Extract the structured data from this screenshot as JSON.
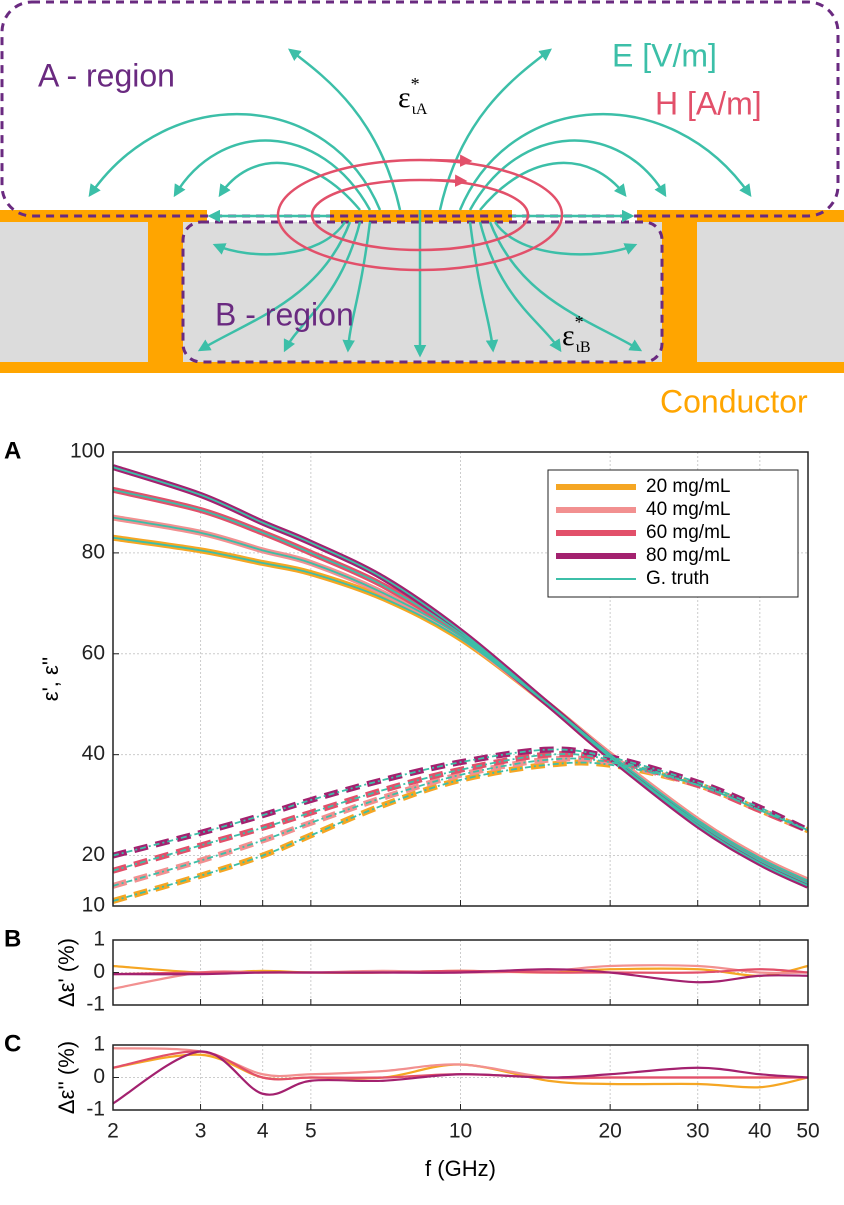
{
  "diagram": {
    "a_region": "A - region",
    "b_region": "B - region",
    "e_field": "E [V/m]",
    "h_field": "H [A/m]",
    "conductor": "Conductor",
    "eps_a": {
      "symbol": "ε",
      "sup": "*",
      "sub": "ιA"
    },
    "eps_b": {
      "symbol": "ε",
      "sup": "*",
      "sub": "ιB"
    }
  },
  "chart_data": [
    {
      "type": "line",
      "panel": "A",
      "ylabel": "ε', ε''",
      "xscale": "log",
      "grid": true,
      "legend": "upper right",
      "x": [
        2,
        3,
        4,
        5,
        7,
        10,
        15,
        20,
        30,
        40,
        50
      ],
      "xlim": [
        2,
        50
      ],
      "xticks": [
        2,
        3,
        4,
        5,
        10,
        20,
        30,
        40,
        50
      ],
      "ylim": [
        10,
        100
      ],
      "yticks": [
        10,
        20,
        40,
        60,
        80,
        100
      ],
      "series": [
        {
          "name": "20 mg/mL",
          "color": "#f5a623",
          "values": [
            83,
            80.5,
            78,
            76,
            71,
            63,
            50,
            40,
            27,
            19.5,
            15
          ],
          "loss_values": [
            11,
            16,
            20,
            24,
            30,
            35,
            38,
            38,
            34,
            29,
            25
          ]
        },
        {
          "name": "40 mg/mL",
          "color": "#f29090",
          "values": [
            87,
            84,
            80.5,
            78,
            72,
            63.5,
            50,
            40,
            27,
            19.5,
            15
          ],
          "loss_values": [
            14,
            19,
            23,
            26.5,
            31.5,
            36,
            39,
            38.5,
            34,
            29,
            25
          ]
        },
        {
          "name": "60 mg/mL",
          "color": "#e2506a",
          "values": [
            92.5,
            88.5,
            84,
            80,
            73.5,
            64,
            50,
            39.5,
            26.5,
            19,
            14.5
          ],
          "loss_values": [
            17,
            22,
            25.5,
            28.5,
            33,
            37,
            40,
            39,
            34,
            29,
            25
          ]
        },
        {
          "name": "80 mg/mL",
          "color": "#a3216f",
          "values": [
            97,
            91.5,
            86,
            82,
            75,
            64.5,
            50,
            39.5,
            26,
            18.5,
            14
          ],
          "loss_values": [
            20,
            24.5,
            28,
            31,
            35,
            38.5,
            41,
            39.5,
            34.5,
            29.5,
            25
          ]
        },
        {
          "name": "G. truth",
          "color": "#3cbfa8",
          "curves": [
            [
              83,
              80.5,
              78,
              76,
              71,
              63,
              50,
              40,
              27,
              19.5,
              15
            ],
            [
              87,
              84,
              80.5,
              78,
              72,
              63.5,
              50,
              40,
              27,
              19.5,
              15
            ],
            [
              92.5,
              88.5,
              84,
              80,
              73.5,
              64,
              50,
              39.5,
              26.5,
              19,
              14.5
            ],
            [
              97,
              91.5,
              86,
              82,
              75,
              64.5,
              50,
              39.5,
              26,
              18.5,
              14
            ],
            [
              11,
              16,
              20,
              24,
              30,
              35,
              38,
              38,
              34,
              29,
              25
            ],
            [
              14,
              19,
              23,
              26.5,
              31.5,
              36,
              39,
              38.5,
              34,
              29,
              25
            ],
            [
              17,
              22,
              25.5,
              28.5,
              33,
              37,
              40,
              39,
              34,
              29,
              25
            ],
            [
              20,
              24.5,
              28,
              31,
              35,
              38.5,
              41,
              39.5,
              34.5,
              29.5,
              25
            ]
          ]
        }
      ]
    },
    {
      "type": "line",
      "panel": "B",
      "ylabel": "Δε' (%)",
      "xscale": "log",
      "grid": true,
      "x": [
        2,
        3,
        4,
        5,
        7,
        10,
        15,
        20,
        30,
        40,
        50
      ],
      "xlim": [
        2,
        50
      ],
      "xticks": [
        2,
        3,
        4,
        5,
        10,
        20,
        30,
        40,
        50
      ],
      "ylim": [
        -1,
        1
      ],
      "yticks": [
        -1,
        0,
        1
      ],
      "series": [
        {
          "name": "20 mg/mL",
          "color": "#f5a623",
          "values": [
            0.2,
            0,
            0.05,
            0,
            0,
            0.05,
            0,
            0.1,
            0.1,
            -0.1,
            0.2
          ]
        },
        {
          "name": "40 mg/mL",
          "color": "#f29090",
          "values": [
            -0.5,
            0,
            0,
            0,
            0.05,
            0,
            0.05,
            0.2,
            0.2,
            0,
            0
          ]
        },
        {
          "name": "60 mg/mL",
          "color": "#e2506a",
          "values": [
            -0.05,
            0,
            0,
            0,
            0,
            0.05,
            0,
            0,
            0,
            0.1,
            0
          ]
        },
        {
          "name": "80 mg/mL",
          "color": "#a3216f",
          "values": [
            -0.05,
            -0.05,
            0,
            0,
            0,
            0,
            0.1,
            0,
            -0.3,
            -0.1,
            -0.1
          ]
        }
      ]
    },
    {
      "type": "line",
      "panel": "C",
      "ylabel": "Δε'' (%)",
      "xlabel": "f (GHz)",
      "xscale": "log",
      "grid": true,
      "x": [
        2,
        3,
        4,
        5,
        7,
        10,
        15,
        20,
        30,
        40,
        50
      ],
      "xlim": [
        2,
        50
      ],
      "xticks": [
        2,
        3,
        4,
        5,
        10,
        20,
        30,
        40,
        50
      ],
      "ylim": [
        -1,
        1
      ],
      "yticks": [
        -1,
        0,
        1
      ],
      "series": [
        {
          "name": "20 mg/mL",
          "color": "#f5a623",
          "values": [
            0.3,
            0.7,
            0,
            0,
            0,
            0.4,
            -0.1,
            -0.2,
            -0.2,
            -0.3,
            0
          ]
        },
        {
          "name": "40 mg/mL",
          "color": "#f29090",
          "values": [
            0.9,
            0.8,
            0.1,
            0.1,
            0.2,
            0.4,
            0,
            0,
            0,
            0,
            0
          ]
        },
        {
          "name": "60 mg/mL",
          "color": "#e2506a",
          "values": [
            0.3,
            0.8,
            0,
            0,
            0,
            0.1,
            0,
            0,
            0,
            0,
            0
          ]
        },
        {
          "name": "80 mg/mL",
          "color": "#a3216f",
          "values": [
            -0.8,
            0.8,
            -0.5,
            -0.1,
            -0.1,
            0.1,
            0,
            0.1,
            0.3,
            0.1,
            0
          ]
        }
      ]
    }
  ]
}
